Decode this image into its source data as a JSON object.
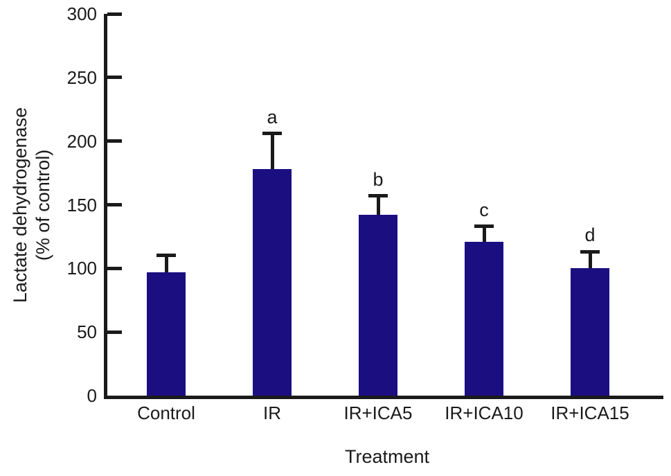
{
  "chart_data": {
    "type": "bar",
    "title": "",
    "xlabel": "Treatment",
    "ylabel": "Lactate dehydrogenase (% of control)",
    "ylabel_lines": [
      "Lactate dehydrogenase",
      "(% of control)"
    ],
    "categories": [
      "Control",
      "IR",
      "IR+ICA5",
      "IR+ICA10",
      "IR+ICA15"
    ],
    "values": [
      97,
      178,
      142,
      121,
      100
    ],
    "errors_upper": [
      13,
      28,
      15,
      12,
      13
    ],
    "annotations": [
      "",
      "a",
      "b",
      "c",
      "d"
    ],
    "ylim": [
      0,
      300
    ],
    "yticks": [
      0,
      50,
      100,
      150,
      200,
      250,
      300
    ],
    "grid": "off",
    "legend": "none",
    "bar_color": "#1b0e81",
    "axis_color": "#1a1a1a",
    "text_color": "#1a1a1a"
  }
}
